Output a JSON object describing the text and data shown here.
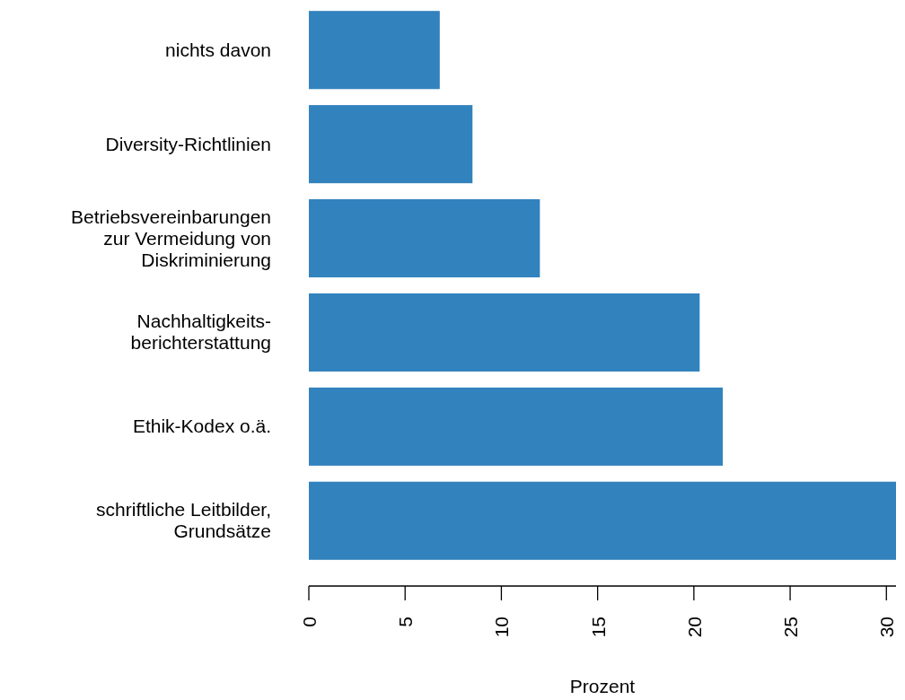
{
  "chart_data": {
    "type": "bar",
    "orientation": "horizontal",
    "xlabel": "Prozent",
    "categories": [
      "nichts davon",
      "Diversity-Richtlinien",
      "Betriebsvereinbarungen\nzur Vermeidung von\nDiskriminierung",
      "Nachhaltigkeits-\nberichterstattung",
      "Ethik-Kodex o.ä.",
      "schriftliche Leitbilder,\nGrundsätze"
    ],
    "values": [
      6.8,
      8.5,
      12.0,
      20.3,
      21.5,
      30.5
    ],
    "color": "#3282bd",
    "xlim": [
      0,
      30.5
    ],
    "xticks": [
      0,
      5,
      10,
      15,
      20,
      25,
      30
    ]
  }
}
